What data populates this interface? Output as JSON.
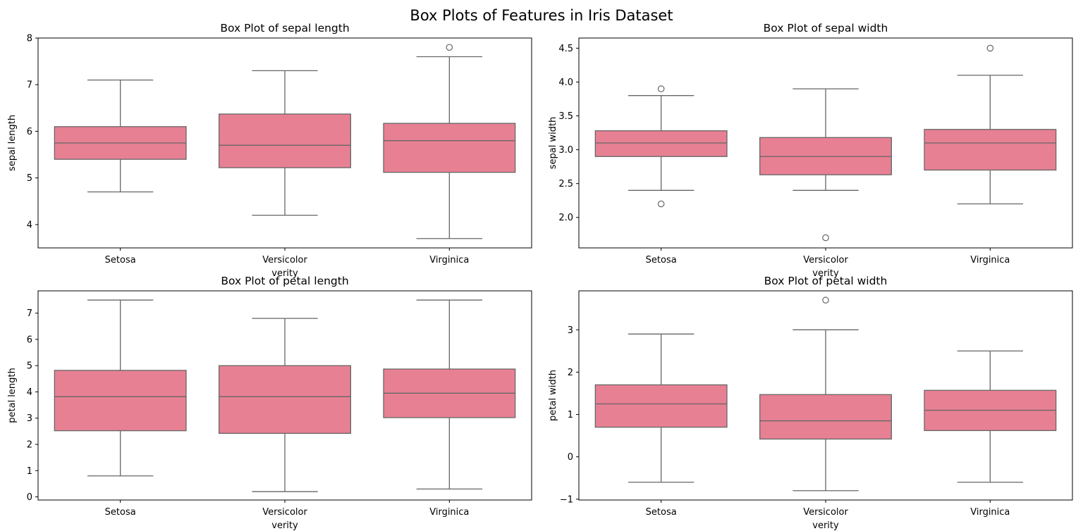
{
  "figure": {
    "title": "Box Plots of Features in Iris Dataset",
    "box_color": "#e88093",
    "line_color": "#666666"
  },
  "chart_data": [
    {
      "type": "box",
      "title": "Box Plot of sepal length",
      "xlabel": "verity",
      "ylabel": "sepal length",
      "categories": [
        "Setosa",
        "Versicolor",
        "Virginica"
      ],
      "ylim": [
        3.5,
        8.0
      ],
      "yticks": [
        4,
        5,
        6,
        7,
        8
      ],
      "boxes": [
        {
          "whisker_low": 4.7,
          "q1": 5.4,
          "median": 5.75,
          "q3": 6.1,
          "whisker_high": 7.1,
          "outliers": []
        },
        {
          "whisker_low": 4.2,
          "q1": 5.22,
          "median": 5.7,
          "q3": 6.37,
          "whisker_high": 7.3,
          "outliers": []
        },
        {
          "whisker_low": 3.7,
          "q1": 5.12,
          "median": 5.8,
          "q3": 6.17,
          "whisker_high": 7.6,
          "outliers": [
            7.8
          ]
        }
      ]
    },
    {
      "type": "box",
      "title": "Box Plot of sepal width",
      "xlabel": "verity",
      "ylabel": "sepal width",
      "categories": [
        "Setosa",
        "Versicolor",
        "Virginica"
      ],
      "ylim": [
        1.55,
        4.65
      ],
      "yticks": [
        2.0,
        2.5,
        3.0,
        3.5,
        4.0,
        4.5
      ],
      "tick_decimals": 1,
      "boxes": [
        {
          "whisker_low": 2.4,
          "q1": 2.9,
          "median": 3.1,
          "q3": 3.28,
          "whisker_high": 3.8,
          "outliers": [
            3.9,
            2.2
          ]
        },
        {
          "whisker_low": 2.4,
          "q1": 2.63,
          "median": 2.9,
          "q3": 3.18,
          "whisker_high": 3.9,
          "outliers": [
            1.7
          ]
        },
        {
          "whisker_low": 2.2,
          "q1": 2.7,
          "median": 3.1,
          "q3": 3.3,
          "whisker_high": 4.1,
          "outliers": [
            4.5
          ]
        }
      ]
    },
    {
      "type": "box",
      "title": "Box Plot of petal length",
      "xlabel": "verity",
      "ylabel": "petal length",
      "categories": [
        "Setosa",
        "Versicolor",
        "Virginica"
      ],
      "ylim": [
        -0.12,
        7.85
      ],
      "yticks": [
        0,
        1,
        2,
        3,
        4,
        5,
        6,
        7
      ],
      "boxes": [
        {
          "whisker_low": 0.8,
          "q1": 2.52,
          "median": 3.82,
          "q3": 4.82,
          "whisker_high": 7.5,
          "outliers": []
        },
        {
          "whisker_low": 0.2,
          "q1": 2.42,
          "median": 3.82,
          "q3": 5.0,
          "whisker_high": 6.8,
          "outliers": []
        },
        {
          "whisker_low": 0.3,
          "q1": 3.02,
          "median": 3.95,
          "q3": 4.87,
          "whisker_high": 7.5,
          "outliers": []
        }
      ]
    },
    {
      "type": "box",
      "title": "Box Plot of petal width",
      "xlabel": "verity",
      "ylabel": "petal width",
      "categories": [
        "Setosa",
        "Versicolor",
        "Virginica"
      ],
      "ylim": [
        -1.02,
        3.92
      ],
      "yticks": [
        -1,
        0,
        1,
        2,
        3
      ],
      "boxes": [
        {
          "whisker_low": -0.6,
          "q1": 0.7,
          "median": 1.25,
          "q3": 1.7,
          "whisker_high": 2.9,
          "outliers": []
        },
        {
          "whisker_low": -0.8,
          "q1": 0.42,
          "median": 0.85,
          "q3": 1.47,
          "whisker_high": 3.0,
          "outliers": [
            3.7
          ]
        },
        {
          "whisker_low": -0.6,
          "q1": 0.62,
          "median": 1.1,
          "q3": 1.57,
          "whisker_high": 2.5,
          "outliers": []
        }
      ]
    }
  ]
}
